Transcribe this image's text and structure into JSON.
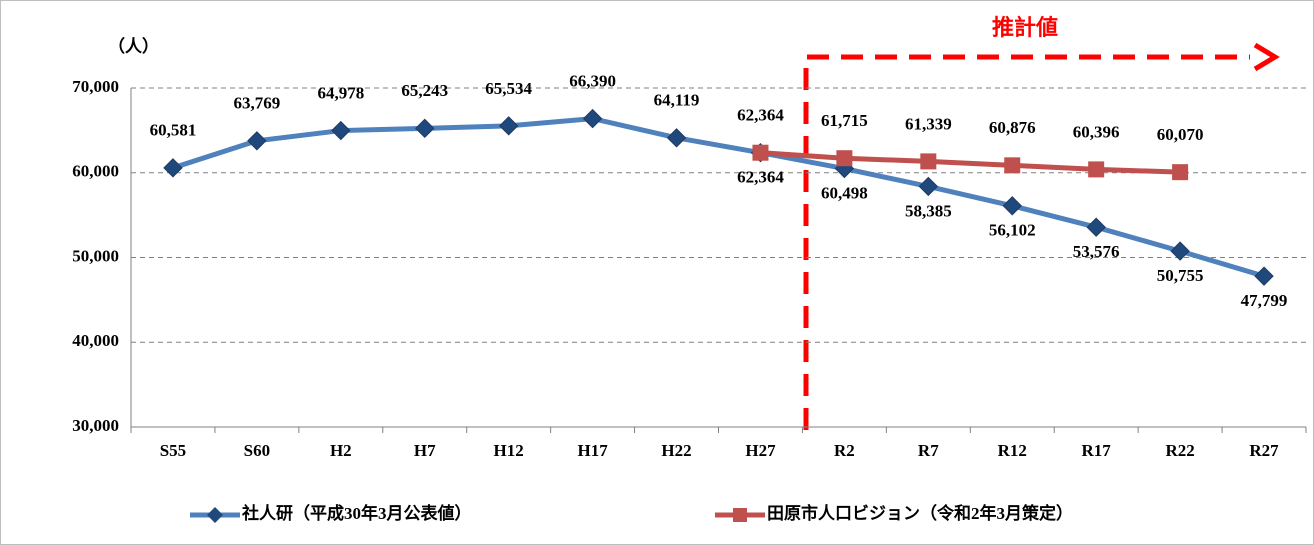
{
  "chart_data": {
    "type": "line",
    "y_axis_label": "（人）",
    "annotation": "推計値",
    "categories": [
      "S55",
      "S60",
      "H2",
      "H7",
      "H12",
      "H17",
      "H22",
      "H27",
      "R2",
      "R7",
      "R12",
      "R17",
      "R22",
      "R27"
    ],
    "series": [
      {
        "name": "社人研（平成30年3月公表値）",
        "color": "#4f81bd",
        "marker_color": "#1f497d",
        "marker": "diamond",
        "values": [
          60581,
          63769,
          64978,
          65243,
          65534,
          66390,
          64119,
          62364,
          60498,
          58385,
          56102,
          53576,
          50755,
          47799
        ],
        "value_labels": [
          "60,581",
          "63,769",
          "64,978",
          "65,243",
          "65,534",
          "66,390",
          "64,119",
          "62,364",
          "60,498",
          "58,385",
          "56,102",
          "53,576",
          "50,755",
          "47,799"
        ]
      },
      {
        "name": "田原市人口ビジョン（令和2年3月策定）",
        "color": "#c0504d",
        "marker_color": "#c0504d",
        "marker": "square",
        "values": [
          null,
          null,
          null,
          null,
          null,
          null,
          null,
          62364,
          61715,
          61339,
          60876,
          60396,
          60070,
          null
        ],
        "value_labels": [
          null,
          null,
          null,
          null,
          null,
          null,
          null,
          "62,364",
          "61,715",
          "61,339",
          "60,876",
          "60,396",
          "60,070",
          null
        ]
      }
    ],
    "ylim": [
      30000,
      70000
    ],
    "yticks": [
      {
        "value": 30000,
        "label": "30,000"
      },
      {
        "value": 40000,
        "label": "40,000"
      },
      {
        "value": 50000,
        "label": "50,000"
      },
      {
        "value": 60000,
        "label": "60,000"
      },
      {
        "value": 70000,
        "label": "70,000"
      }
    ],
    "grid": true,
    "legend": "bottom"
  }
}
